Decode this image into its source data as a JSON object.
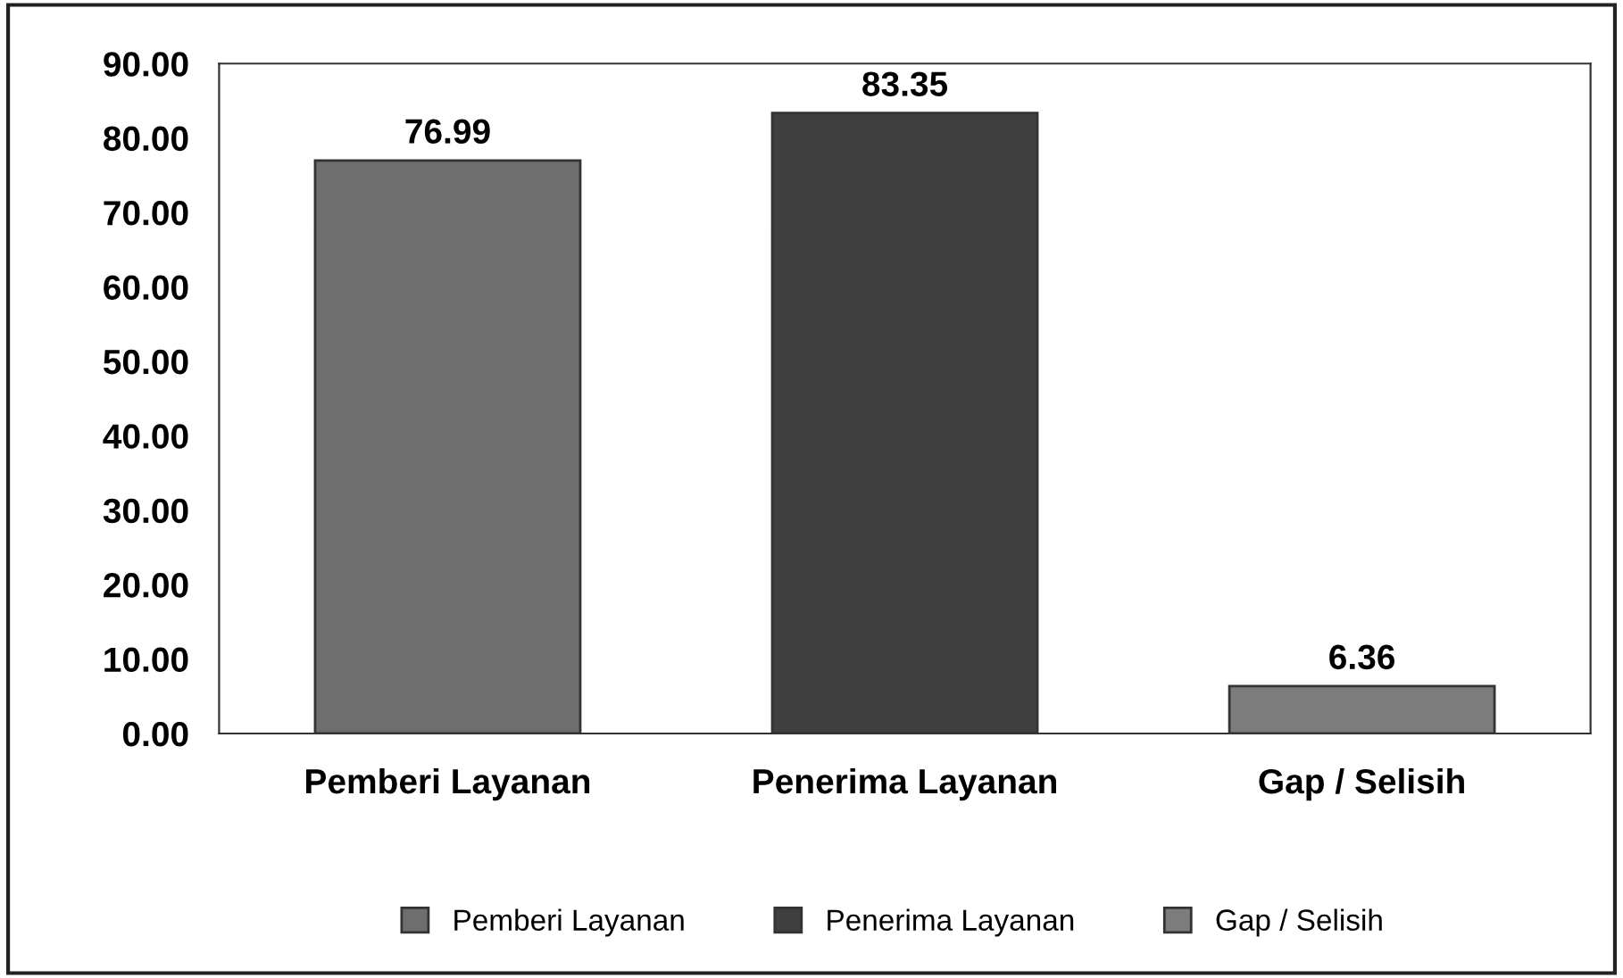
{
  "chart_data": {
    "type": "bar",
    "categories": [
      "Pemberi Layanan",
      "Penerima Layanan",
      "Gap / Selisih"
    ],
    "series": [
      {
        "name": "Pemberi Layanan",
        "color": "#6e6e6e",
        "values": [
          76.99,
          null,
          null
        ]
      },
      {
        "name": "Penerima Layanan",
        "color": "#3f3f3f",
        "values": [
          null,
          83.35,
          null
        ]
      },
      {
        "name": "Gap / Selisih",
        "color": "#7c7c7c",
        "values": [
          null,
          null,
          6.36
        ]
      }
    ],
    "data_labels": true,
    "ylim": [
      0,
      90
    ],
    "yticks": [
      {
        "value": 0,
        "label": "0.00"
      },
      {
        "value": 10,
        "label": "10.00"
      },
      {
        "value": 20,
        "label": "20.00"
      },
      {
        "value": 30,
        "label": "30.00"
      },
      {
        "value": 40,
        "label": "40.00"
      },
      {
        "value": 50,
        "label": "50.00"
      },
      {
        "value": 60,
        "label": "60.00"
      },
      {
        "value": 70,
        "label": "70.00"
      },
      {
        "value": 80,
        "label": "80.00"
      },
      {
        "value": 90,
        "label": "90.00"
      }
    ],
    "grid": false,
    "legend": "bottom"
  }
}
